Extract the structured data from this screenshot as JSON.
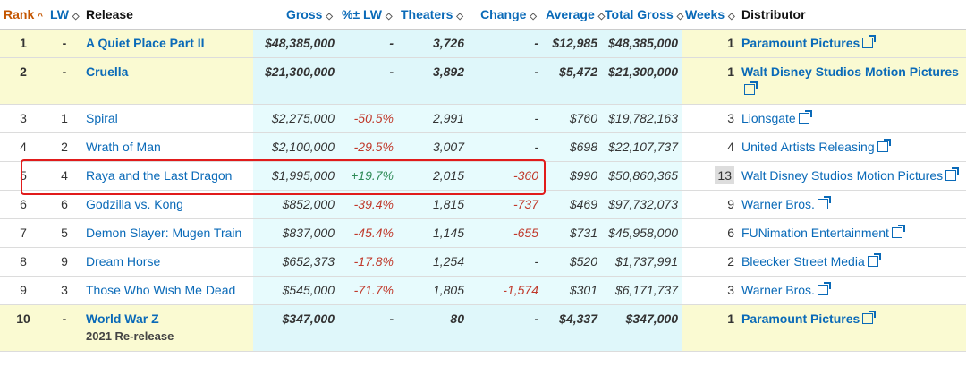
{
  "headers": {
    "rank": "Rank",
    "lw": "LW",
    "release": "Release",
    "gross": "Gross",
    "pct_lw": "%± LW",
    "theaters": "Theaters",
    "change": "Change",
    "average": "Average",
    "total_gross": "Total Gross",
    "weeks": "Weeks",
    "distributor": "Distributor"
  },
  "rows": [
    {
      "rank": "1",
      "lw": "-",
      "release": "A Quiet Place Part II",
      "sub": "",
      "gross": "$48,385,000",
      "pct": "-",
      "theaters": "3,726",
      "change": "-",
      "average": "$12,985",
      "total": "$48,385,000",
      "weeks": "1",
      "distributor": "Paramount Pictures",
      "highlight": true
    },
    {
      "rank": "2",
      "lw": "-",
      "release": "Cruella",
      "sub": "",
      "gross": "$21,300,000",
      "pct": "-",
      "theaters": "3,892",
      "change": "-",
      "average": "$5,472",
      "total": "$21,300,000",
      "weeks": "1",
      "distributor": "Walt Disney Studios Motion Pictures",
      "highlight": true
    },
    {
      "rank": "3",
      "lw": "1",
      "release": "Spiral",
      "sub": "",
      "gross": "$2,275,000",
      "pct": "-50.5%",
      "theaters": "2,991",
      "change": "-",
      "average": "$760",
      "total": "$19,782,163",
      "weeks": "3",
      "distributor": "Lionsgate",
      "highlight": false
    },
    {
      "rank": "4",
      "lw": "2",
      "release": "Wrath of Man",
      "sub": "",
      "gross": "$2,100,000",
      "pct": "-29.5%",
      "theaters": "3,007",
      "change": "-",
      "average": "$698",
      "total": "$22,107,737",
      "weeks": "4",
      "distributor": "United Artists Releasing",
      "highlight": false
    },
    {
      "rank": "5",
      "lw": "4",
      "release": "Raya and the Last Dragon",
      "sub": "",
      "gross": "$1,995,000",
      "pct": "+19.7%",
      "theaters": "2,015",
      "change": "-360",
      "average": "$990",
      "total": "$50,860,365",
      "weeks": "13",
      "distributor": "Walt Disney Studios Motion Pictures",
      "highlight": false
    },
    {
      "rank": "6",
      "lw": "6",
      "release": "Godzilla vs. Kong",
      "sub": "",
      "gross": "$852,000",
      "pct": "-39.4%",
      "theaters": "1,815",
      "change": "-737",
      "average": "$469",
      "total": "$97,732,073",
      "weeks": "9",
      "distributor": "Warner Bros.",
      "highlight": false
    },
    {
      "rank": "7",
      "lw": "5",
      "release": "Demon Slayer: Mugen Train",
      "sub": "",
      "gross": "$837,000",
      "pct": "-45.4%",
      "theaters": "1,145",
      "change": "-655",
      "average": "$731",
      "total": "$45,958,000",
      "weeks": "6",
      "distributor": "FUNimation Entertainment",
      "highlight": false
    },
    {
      "rank": "8",
      "lw": "9",
      "release": "Dream Horse",
      "sub": "",
      "gross": "$652,373",
      "pct": "-17.8%",
      "theaters": "1,254",
      "change": "-",
      "average": "$520",
      "total": "$1,737,991",
      "weeks": "2",
      "distributor": "Bleecker Street Media",
      "highlight": false
    },
    {
      "rank": "9",
      "lw": "3",
      "release": "Those Who Wish Me Dead",
      "sub": "",
      "gross": "$545,000",
      "pct": "-71.7%",
      "theaters": "1,805",
      "change": "-1,574",
      "average": "$301",
      "total": "$6,171,737",
      "weeks": "3",
      "distributor": "Warner Bros.",
      "highlight": false
    },
    {
      "rank": "10",
      "lw": "-",
      "release": "World War Z",
      "sub": "2021 Re-release",
      "gross": "$347,000",
      "pct": "-",
      "theaters": "80",
      "change": "-",
      "average": "$4,337",
      "total": "$347,000",
      "weeks": "1",
      "distributor": "Paramount Pictures",
      "highlight": true
    }
  ],
  "colors": {
    "link": "#0a6ab8",
    "highlight_row": "#fafad2",
    "cyan_col": "#e7fbfd",
    "annotation_box": "#e11b1b",
    "negative": "#c0392b",
    "positive": "#2e8b57"
  }
}
